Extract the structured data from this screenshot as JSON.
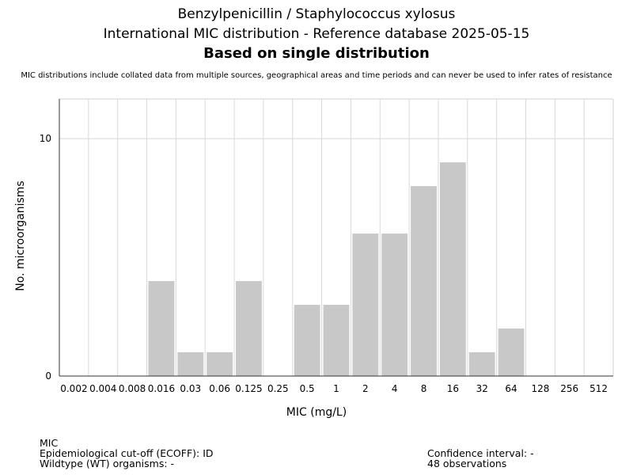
{
  "header": {
    "line1": "Benzylpenicillin / Staphylococcus xylosus",
    "line2": "International MIC distribution - Reference database 2025-05-15",
    "line3": "Based on single distribution",
    "note": "MIC distributions include collated data from multiple sources, geographical areas and time periods and can never be used to infer rates of resistance"
  },
  "chart_data": {
    "type": "bar",
    "xlabel": "MIC (mg/L)",
    "ylabel": "No. microorganisms",
    "categories": [
      "0.002",
      "0.004",
      "0.008",
      "0.016",
      "0.03",
      "0.06",
      "0.125",
      "0.25",
      "0.5",
      "1",
      "2",
      "4",
      "8",
      "16",
      "32",
      "64",
      "128",
      "256",
      "512"
    ],
    "values": [
      0,
      0,
      0,
      4,
      1,
      1,
      4,
      0,
      3,
      3,
      6,
      6,
      8,
      9,
      1,
      2,
      0,
      0,
      0
    ],
    "ylim": [
      0,
      11.67
    ],
    "yticks": [
      "0",
      "10"
    ],
    "grid": true,
    "bar_color": "#c8c8c8"
  },
  "footer": {
    "mic": "MIC",
    "ecoff": "Epidemiological cut-off (ECOFF): ID",
    "wt": "Wildtype (WT) organisms:  -",
    "ci": "Confidence interval: -",
    "obs": "48 observations"
  }
}
